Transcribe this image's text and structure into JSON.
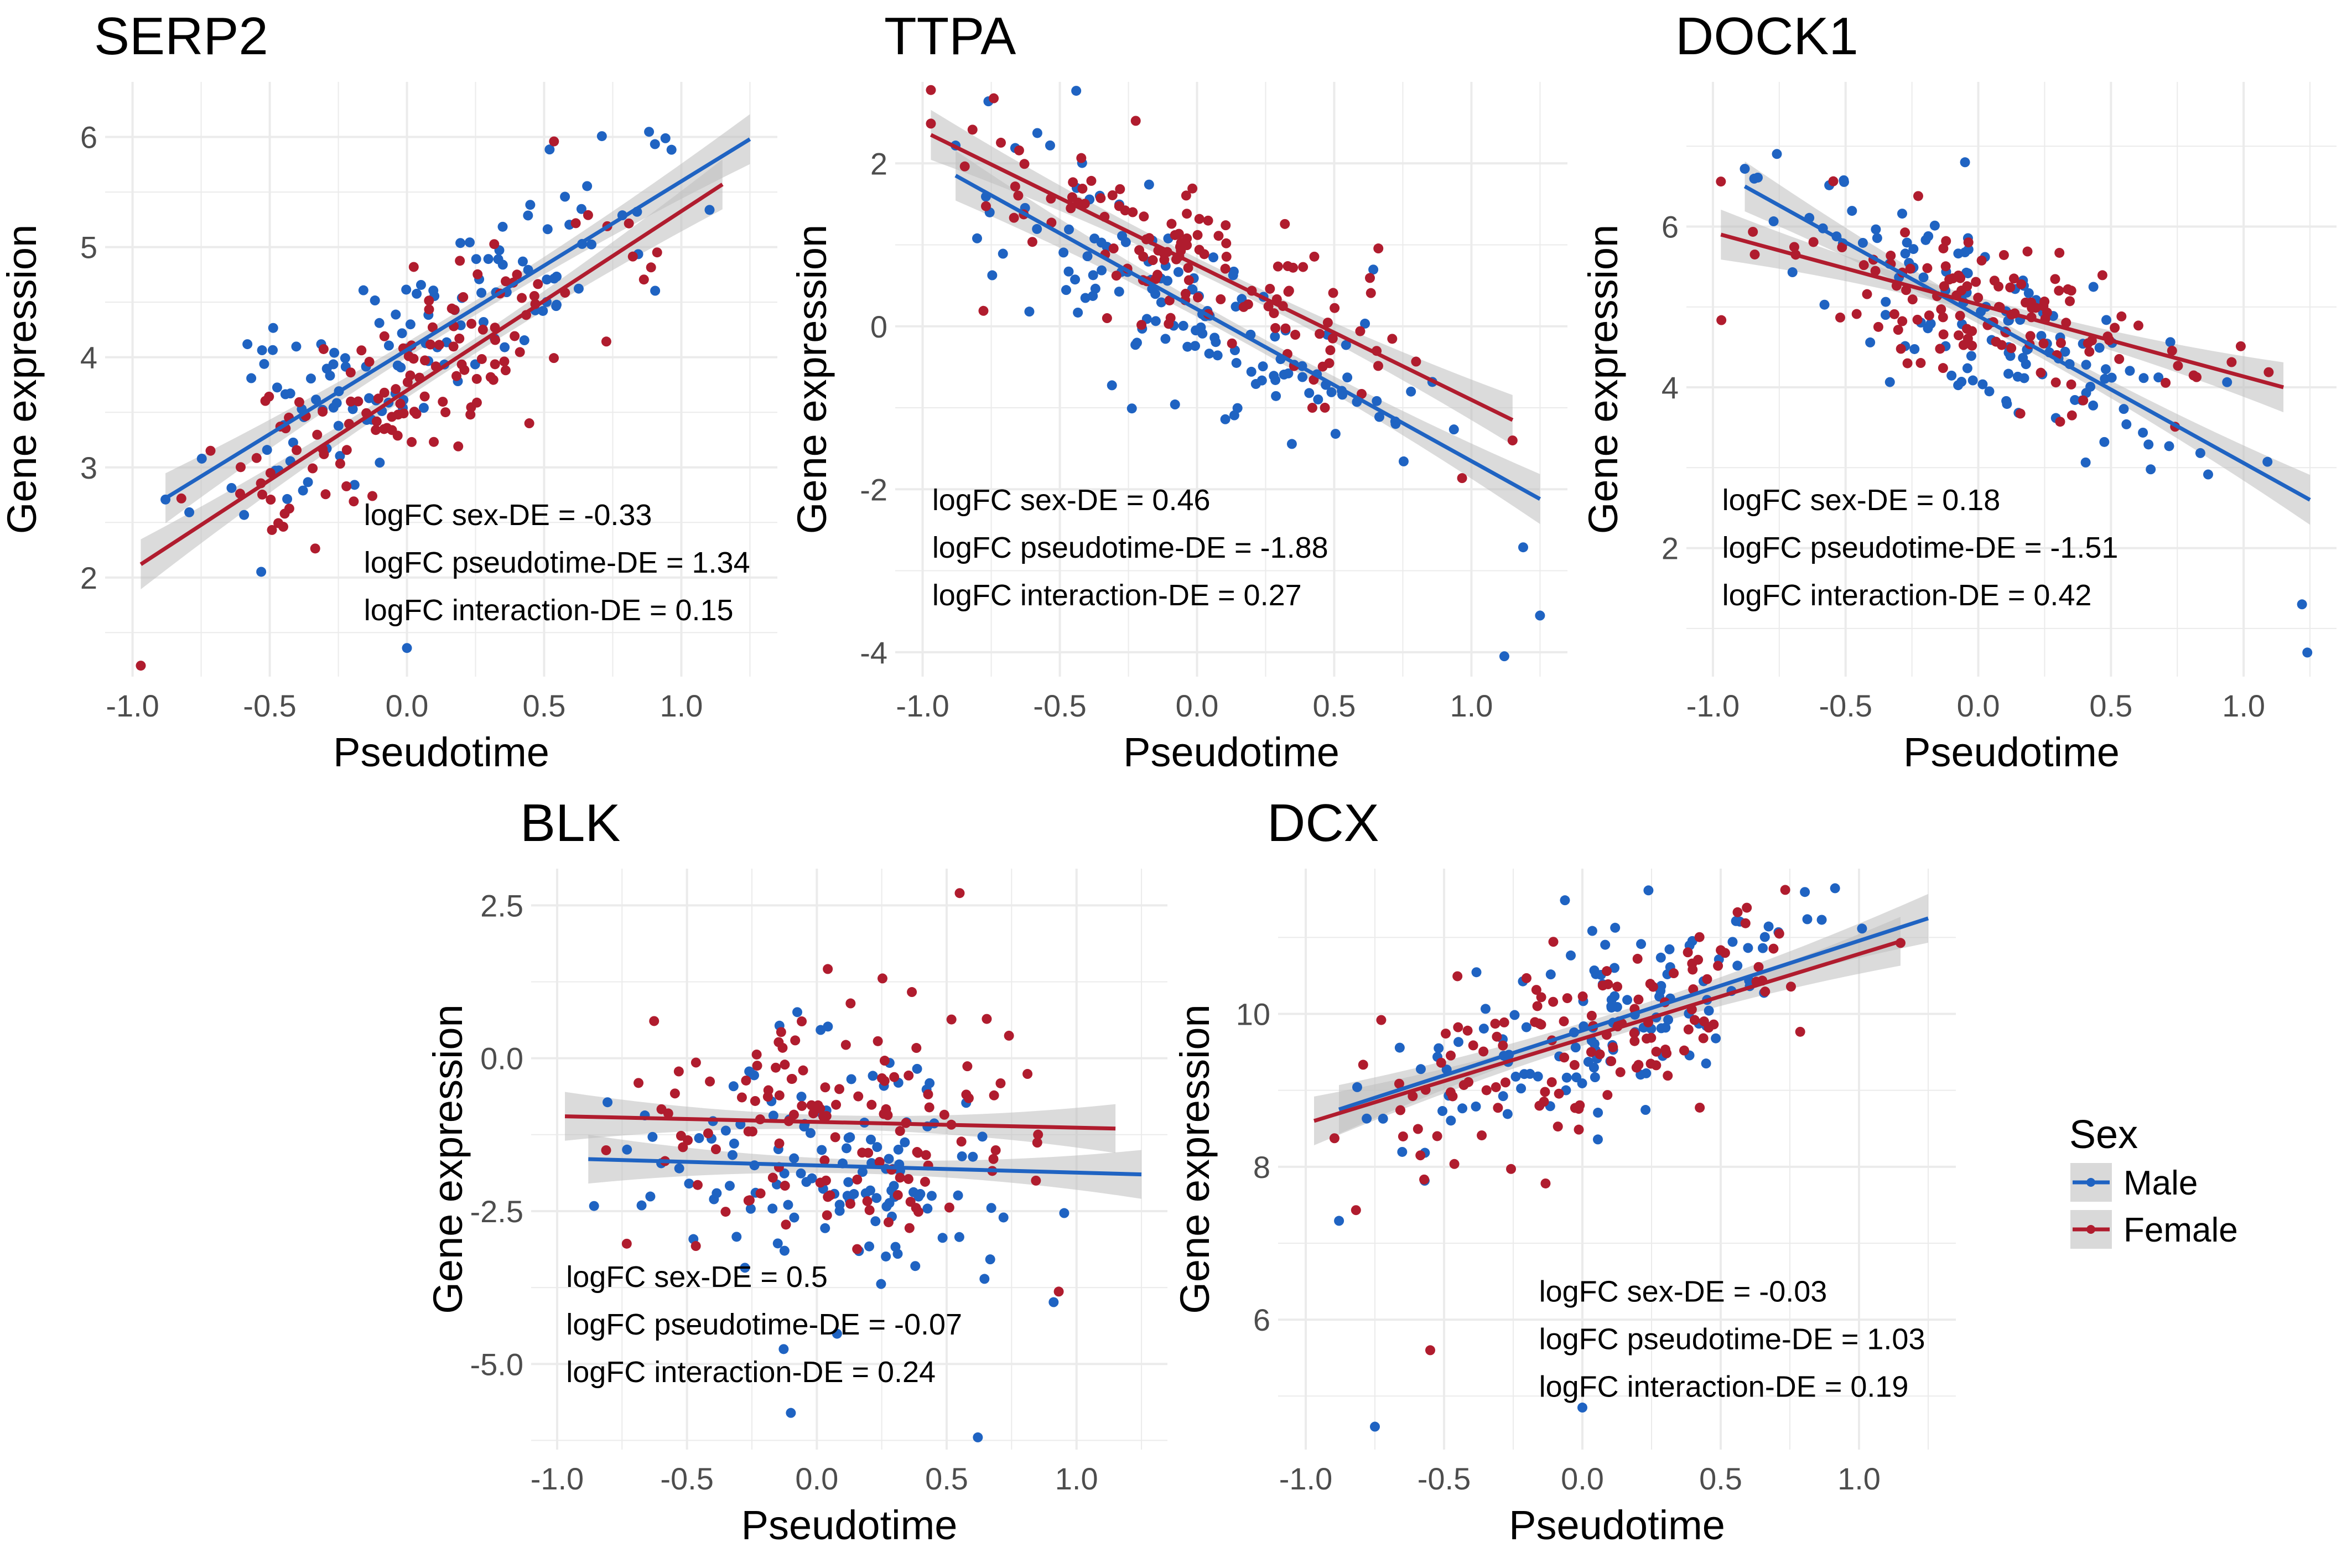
{
  "colors": {
    "male": "#1f63c2",
    "female": "#b01c2e",
    "band": "#bdbdbd",
    "grid": "#ebebeb"
  },
  "legend": {
    "title": "Sex",
    "items": [
      {
        "label": "Male",
        "color": "#1f63c2"
      },
      {
        "label": "Female",
        "color": "#b01c2e"
      }
    ]
  },
  "chart_data": [
    {
      "type": "scatter",
      "title": "SERP2",
      "xlabel": "Pseudotime",
      "ylabel": "Gene expression",
      "xlim": [
        -1.1,
        1.35
      ],
      "ylim": [
        1.1,
        6.5
      ],
      "xticks": [
        -1.0,
        -0.5,
        0.0,
        0.5,
        1.0
      ],
      "xtick_labels": [
        "-1.0",
        "-0.5",
        "0.0",
        "0.5",
        "1.0"
      ],
      "yticks": [
        2,
        3,
        4,
        5,
        6
      ],
      "ytick_labels": [
        "2",
        "3",
        "4",
        "5",
        "6"
      ],
      "annotations": [
        "logFC sex-DE = -0.33",
        "logFC pseudotime-DE = 1.34",
        "logFC interaction-DE = 0.15"
      ],
      "annotation_pos": "bottom-right",
      "fits": [
        {
          "series": "Male",
          "x": [
            -0.88,
            1.25
          ],
          "y": [
            2.72,
            5.98
          ]
        },
        {
          "series": "Female",
          "x": [
            -0.97,
            1.15
          ],
          "y": [
            2.12,
            5.57
          ]
        }
      ],
      "series": [
        {
          "name": "Male",
          "seed": 11,
          "n": 130,
          "slope": 1.53,
          "intercept": 4.06,
          "noise": 0.42,
          "xrange": [
            -0.88,
            1.25
          ]
        },
        {
          "name": "Female",
          "seed": 23,
          "n": 130,
          "slope": 1.63,
          "intercept": 3.71,
          "noise": 0.42,
          "xrange": [
            -0.97,
            1.15
          ]
        }
      ],
      "outliers": [
        {
          "series": "Male",
          "x": 0.0,
          "y": 1.36
        }
      ]
    },
    {
      "type": "scatter",
      "title": "TTPA",
      "xlabel": "Pseudotime",
      "ylabel": "Gene expression",
      "xlim": [
        -1.1,
        1.35
      ],
      "ylim": [
        -4.3,
        3.0
      ],
      "xticks": [
        -1.0,
        -0.5,
        0.0,
        0.5,
        1.0
      ],
      "xtick_labels": [
        "-1.0",
        "-0.5",
        "0.0",
        "0.5",
        "1.0"
      ],
      "yticks": [
        -4,
        -2,
        0,
        2
      ],
      "ytick_labels": [
        "-4",
        "-2",
        "0",
        "2"
      ],
      "annotations": [
        "logFC sex-DE = 0.46",
        "logFC pseudotime-DE = -1.88",
        "logFC interaction-DE = 0.27"
      ],
      "annotation_pos": "bottom-left",
      "fits": [
        {
          "series": "Male",
          "x": [
            -0.88,
            1.25
          ],
          "y": [
            1.85,
            -2.12
          ]
        },
        {
          "series": "Female",
          "x": [
            -0.97,
            1.15
          ],
          "y": [
            2.35,
            -1.15
          ]
        }
      ],
      "series": [
        {
          "name": "Male",
          "seed": 37,
          "n": 130,
          "slope": -1.86,
          "intercept": 0.21,
          "noise": 0.6,
          "xrange": [
            -0.88,
            1.25
          ]
        },
        {
          "name": "Female",
          "seed": 41,
          "n": 130,
          "slope": -1.65,
          "intercept": 0.75,
          "noise": 0.55,
          "xrange": [
            -0.97,
            1.15
          ]
        }
      ],
      "outliers": [
        {
          "series": "Male",
          "x": 1.12,
          "y": -4.05
        },
        {
          "series": "Male",
          "x": 1.25,
          "y": -3.55
        }
      ]
    },
    {
      "type": "scatter",
      "title": "DOCK1",
      "xlabel": "Pseudotime",
      "ylabel": "Gene expression",
      "xlim": [
        -1.1,
        1.35
      ],
      "ylim": [
        0.4,
        7.8
      ],
      "xticks": [
        -1.0,
        -0.5,
        0.0,
        0.5,
        1.0
      ],
      "xtick_labels": [
        "-1.0",
        "-0.5",
        "0.0",
        "0.5",
        "1.0"
      ],
      "yticks": [
        2,
        4,
        6
      ],
      "ytick_labels": [
        "2",
        "4",
        "6"
      ],
      "annotations": [
        "logFC sex-DE = 0.18",
        "logFC pseudotime-DE = -1.51",
        "logFC interaction-DE = 0.42"
      ],
      "annotation_pos": "bottom-left",
      "fits": [
        {
          "series": "Male",
          "x": [
            -0.88,
            1.25
          ],
          "y": [
            6.5,
            2.6
          ]
        },
        {
          "series": "Female",
          "x": [
            -0.97,
            1.15
          ],
          "y": [
            5.9,
            4.0
          ]
        }
      ],
      "series": [
        {
          "name": "Male",
          "seed": 53,
          "n": 130,
          "slope": -1.83,
          "intercept": 4.89,
          "noise": 0.5,
          "xrange": [
            -0.88,
            1.25
          ]
        },
        {
          "name": "Female",
          "seed": 67,
          "n": 130,
          "slope": -0.9,
          "intercept": 5.03,
          "noise": 0.45,
          "xrange": [
            -0.97,
            1.15
          ]
        }
      ],
      "outliers": [
        {
          "series": "Male",
          "x": 1.24,
          "y": 0.7
        },
        {
          "series": "Male",
          "x": 1.22,
          "y": 1.3
        },
        {
          "series": "Male",
          "x": -0.05,
          "y": 6.8
        }
      ]
    },
    {
      "type": "scatter",
      "title": "BLK",
      "xlabel": "Pseudotime",
      "ylabel": "Gene expression",
      "xlim": [
        -1.1,
        1.35
      ],
      "ylim": [
        -6.4,
        3.1
      ],
      "xticks": [
        -1.0,
        -0.5,
        0.0,
        0.5,
        1.0
      ],
      "xtick_labels": [
        "-1.0",
        "-0.5",
        "0.0",
        "0.5",
        "1.0"
      ],
      "yticks": [
        -5.0,
        -2.5,
        0.0,
        2.5
      ],
      "ytick_labels": [
        "-5.0",
        "-2.5",
        "0.0",
        "2.5"
      ],
      "annotations": [
        "logFC sex-DE = 0.5",
        "logFC pseudotime-DE = -0.07",
        "logFC interaction-DE = 0.24"
      ],
      "annotation_pos": "bottom-left",
      "fits": [
        {
          "series": "Male",
          "x": [
            -0.88,
            1.25
          ],
          "y": [
            -1.65,
            -1.9
          ]
        },
        {
          "series": "Female",
          "x": [
            -0.97,
            1.15
          ],
          "y": [
            -0.95,
            -1.15
          ]
        }
      ],
      "series": [
        {
          "name": "Male",
          "seed": 71,
          "n": 130,
          "slope": -0.12,
          "intercept": -1.75,
          "noise": 1.0,
          "xrange": [
            -0.88,
            1.25
          ]
        },
        {
          "name": "Female",
          "seed": 83,
          "n": 130,
          "slope": -0.09,
          "intercept": -1.04,
          "noise": 1.1,
          "xrange": [
            -0.97,
            1.15
          ]
        }
      ],
      "outliers": [
        {
          "series": "Male",
          "x": 0.62,
          "y": -6.2
        },
        {
          "series": "Male",
          "x": -0.1,
          "y": -5.8
        },
        {
          "series": "Female",
          "x": 0.55,
          "y": 2.7
        }
      ]
    },
    {
      "type": "scatter",
      "title": "DCX",
      "xlabel": "Pseudotime",
      "ylabel": "Gene expression",
      "xlim": [
        -1.1,
        1.35
      ],
      "ylim": [
        4.3,
        11.9
      ],
      "xticks": [
        -1.0,
        -0.5,
        0.0,
        0.5,
        1.0
      ],
      "xtick_labels": [
        "-1.0",
        "-0.5",
        "0.0",
        "0.5",
        "1.0"
      ],
      "yticks": [
        6,
        8,
        10
      ],
      "ytick_labels": [
        "6",
        "8",
        "10"
      ],
      "annotations": [
        "logFC sex-DE = -0.03",
        "logFC pseudotime-DE = 1.03",
        "logFC interaction-DE = 0.19"
      ],
      "annotation_pos": "bottom-right",
      "fits": [
        {
          "series": "Male",
          "x": [
            -0.88,
            1.25
          ],
          "y": [
            8.75,
            11.25
          ]
        },
        {
          "series": "Female",
          "x": [
            -0.97,
            1.15
          ],
          "y": [
            8.6,
            10.95
          ]
        }
      ],
      "series": [
        {
          "name": "Male",
          "seed": 97,
          "n": 130,
          "slope": 1.17,
          "intercept": 9.78,
          "noise": 0.65,
          "xrange": [
            -0.88,
            1.25
          ]
        },
        {
          "name": "Female",
          "seed": 101,
          "n": 130,
          "slope": 1.11,
          "intercept": 9.68,
          "noise": 0.6,
          "xrange": [
            -0.97,
            1.15
          ]
        }
      ],
      "outliers": [
        {
          "series": "Male",
          "x": -0.75,
          "y": 4.6
        },
        {
          "series": "Male",
          "x": 0.0,
          "y": 4.85
        },
        {
          "series": "Female",
          "x": -0.55,
          "y": 5.6
        }
      ]
    }
  ]
}
